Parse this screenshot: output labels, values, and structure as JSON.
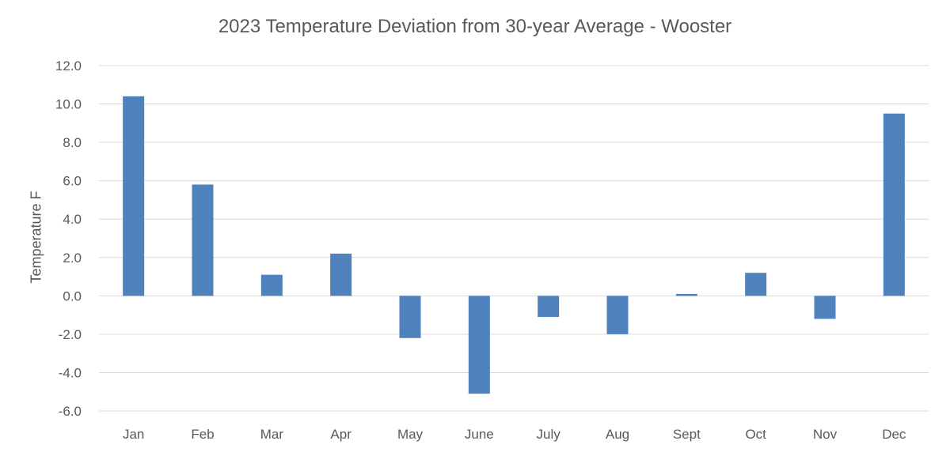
{
  "chart_data": {
    "type": "bar",
    "title": "2023 Temperature Deviation from 30-year Average - Wooster",
    "xlabel": "",
    "ylabel": "Temperature F",
    "categories": [
      "Jan",
      "Feb",
      "Mar",
      "Apr",
      "May",
      "June",
      "July",
      "Aug",
      "Sept",
      "Oct",
      "Nov",
      "Dec"
    ],
    "values": [
      10.4,
      5.8,
      1.1,
      2.2,
      -2.2,
      -5.1,
      -1.1,
      -2.0,
      0.1,
      1.2,
      -1.2,
      9.5
    ],
    "ylim": [
      -6.0,
      12.0
    ],
    "yticks": [
      "12.0",
      "10.0",
      "8.0",
      "6.0",
      "4.0",
      "2.0",
      "0.0",
      "-2.0",
      "-4.0",
      "-6.0"
    ],
    "grid": true,
    "bar_color": "#4f81bd",
    "grid_color": "#d9d9d9"
  }
}
